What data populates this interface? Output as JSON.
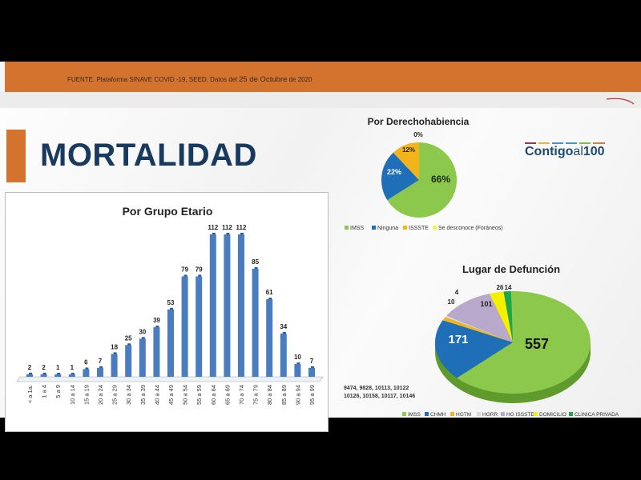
{
  "header": {
    "source_prefix": "FUENTE. Plataforma SINAVE COVID -19, SEED. Datos del ",
    "source_date": "25 de Octubre",
    "source_suffix": " de 2020"
  },
  "page_title": "MORTALIDAD",
  "logo": {
    "text_a": "Contigo",
    "text_b": "al",
    "text_c": "100",
    "colors": [
      "#a83232",
      "#e8b43a",
      "#3a9ad4",
      "#3a9ad4",
      "#7bbf4a",
      "#e07a3a"
    ]
  },
  "chart_data": [
    {
      "type": "bar",
      "title": "Por Grupo Etario",
      "categories": [
        "< a 1a.",
        "1 a 4",
        "5 a 9",
        "10 a 14",
        "15 a 19",
        "20 a 24",
        "25 a 29",
        "30 a 34",
        "35 a 39",
        "40 a 44",
        "45 a 49",
        "50 a 54",
        "55 a 59",
        "60 a 64",
        "65 a 69",
        "70 a 74",
        "75 a 79",
        "80 a 84",
        "85 a 89",
        "90 a 94",
        "95 a 99"
      ],
      "values": [
        2,
        2,
        1,
        1,
        6,
        7,
        18,
        25,
        30,
        39,
        53,
        79,
        79,
        112,
        112,
        112,
        85,
        61,
        34,
        10,
        7
      ],
      "color": "#4a7cc0",
      "ylim": [
        0,
        112
      ],
      "grid": false
    },
    {
      "type": "pie",
      "title": "Por Derechohabiencia",
      "labels": [
        "IMSS",
        "Ninguna",
        "ISSSTE",
        "Se desconoce (Foráneos)"
      ],
      "values": [
        66,
        22,
        12,
        0
      ],
      "value_labels": [
        "66%",
        "22%",
        "12%",
        "0%"
      ],
      "colors": [
        "#8cc84b",
        "#1f6fb8",
        "#f2b418",
        "#f5f04a"
      ],
      "legend": "bottom"
    },
    {
      "type": "pie",
      "title": "Lugar de Defunción",
      "labels": [
        "IMSS",
        "CHMH",
        "HGTM",
        "HGRR",
        "HG ISSSTE",
        "DOMICILIO",
        "CLINICA PRIVADA"
      ],
      "values": [
        557,
        171,
        10,
        4,
        101,
        26,
        14
      ],
      "colors": [
        "#8cc84b",
        "#1f6fb8",
        "#f2b418",
        "#d8d8e0",
        "#b8a8cc",
        "#f5f000",
        "#1fa64a"
      ],
      "legend": "bottom",
      "annotation": [
        "9474, 9828, 10113, 10122",
        "10126, 10158, 10117, 10146"
      ]
    }
  ]
}
